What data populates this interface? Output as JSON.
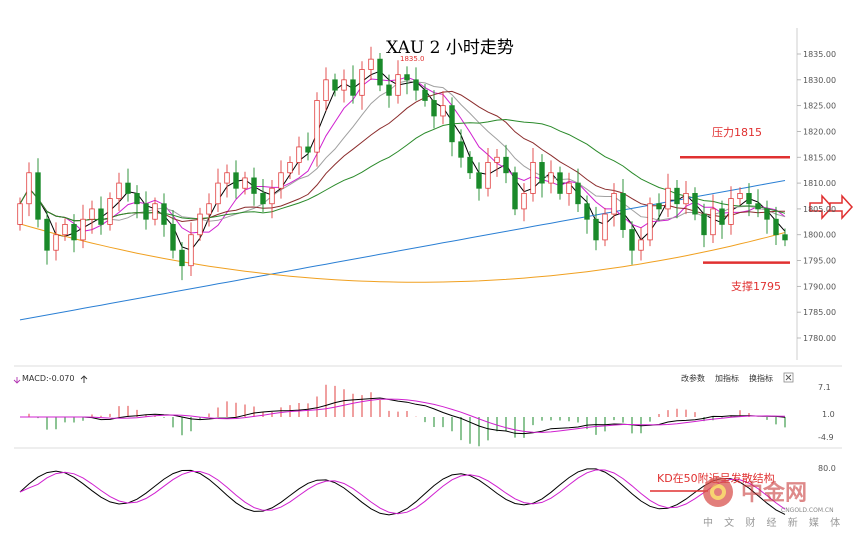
{
  "chart_data": [
    {
      "type": "candlestick",
      "title": "XAU 2 小时走势",
      "ylim": [
        1775.0,
        1840.0
      ],
      "yticks": [
        "1835.00",
        "1830.00",
        "1825.00",
        "1820.00",
        "1815.00",
        "1810.00",
        "1805.00",
        "1800.00",
        "1795.00",
        "1790.00",
        "1785.00",
        "1780.00"
      ],
      "high_label": "1835.0",
      "ma_colors": [
        "#000000",
        "#d020d0",
        "#a0a0a0",
        "#8b2c2c",
        "#2a8a2a",
        "#2a7fd4",
        "#f0a020"
      ],
      "annotations": [
        {
          "text": "压力1815",
          "level": 1815.0,
          "color": "#e03030"
        },
        {
          "text": "支撑1795",
          "level": 1794.5,
          "color": "#e03030"
        }
      ]
    },
    {
      "type": "macd",
      "label": "MACD:-0.070",
      "yticks": [
        "7.1",
        "1.0",
        "-4.9"
      ],
      "ylim": [
        -4.9,
        7.1
      ]
    },
    {
      "type": "kd",
      "yticks": [
        "80.0"
      ],
      "annotation": "KD在50附近呈发散结构"
    }
  ],
  "panel_buttons": [
    "改参数",
    "加指标",
    "换指标"
  ],
  "watermark": {
    "site": "中金网",
    "domain": "CNGOLD.COM.CN",
    "tagline": "中 文 财 经 新 媒 体"
  }
}
